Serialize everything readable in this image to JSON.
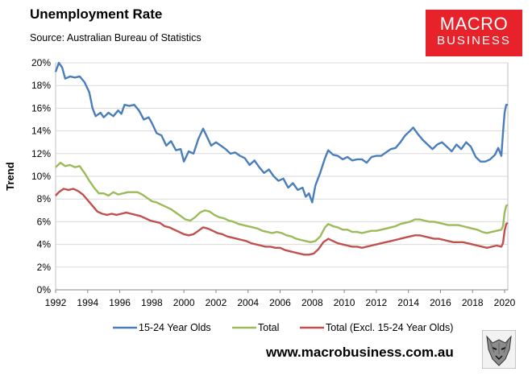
{
  "brand": {
    "line1": "MACRO",
    "line2": "BUSINESS",
    "color": "#e8222a"
  },
  "website": "www.macrobusiness.com.au",
  "chart_data": {
    "type": "line",
    "title": "Unemployment Rate",
    "subtitle": "Source: Australian Bureau of Statistics",
    "ylabel": "Trend",
    "xlabel": "",
    "xlim": [
      1992,
      2020.2
    ],
    "ylim": [
      0,
      20
    ],
    "x_ticks": [
      1992,
      1994,
      1996,
      1998,
      2000,
      2002,
      2004,
      2006,
      2008,
      2010,
      2012,
      2014,
      2016,
      2018,
      2020
    ],
    "x_tick_labels": [
      "1992",
      "1994",
      "1996",
      "1998",
      "2000",
      "2002",
      "2004",
      "2006",
      "2008",
      "2010",
      "2012",
      "2014",
      "2016",
      "2018",
      "2020"
    ],
    "y_ticks": [
      0,
      2,
      4,
      6,
      8,
      10,
      12,
      14,
      16,
      18,
      20
    ],
    "y_tick_labels": [
      "0%",
      "2%",
      "4%",
      "6%",
      "8%",
      "10%",
      "12%",
      "14%",
      "16%",
      "18%",
      "20%"
    ],
    "grid": "horizontal",
    "legend_position": "bottom",
    "series": [
      {
        "name": "15-24 Year Olds",
        "color": "#4a7ebb",
        "points": [
          [
            1992.0,
            19.2
          ],
          [
            1992.2,
            20.0
          ],
          [
            1992.4,
            19.6
          ],
          [
            1992.6,
            18.6
          ],
          [
            1992.9,
            18.8
          ],
          [
            1993.2,
            18.7
          ],
          [
            1993.5,
            18.8
          ],
          [
            1993.8,
            18.3
          ],
          [
            1994.1,
            17.4
          ],
          [
            1994.3,
            16.0
          ],
          [
            1994.5,
            15.3
          ],
          [
            1994.8,
            15.6
          ],
          [
            1995.0,
            15.2
          ],
          [
            1995.3,
            15.6
          ],
          [
            1995.6,
            15.3
          ],
          [
            1995.9,
            15.8
          ],
          [
            1996.1,
            15.5
          ],
          [
            1996.3,
            16.3
          ],
          [
            1996.6,
            16.2
          ],
          [
            1996.9,
            16.3
          ],
          [
            1997.2,
            15.8
          ],
          [
            1997.5,
            15.0
          ],
          [
            1997.8,
            15.2
          ],
          [
            1998.0,
            14.7
          ],
          [
            1998.3,
            13.8
          ],
          [
            1998.6,
            13.6
          ],
          [
            1998.9,
            12.7
          ],
          [
            1999.2,
            13.1
          ],
          [
            1999.5,
            12.3
          ],
          [
            1999.8,
            12.4
          ],
          [
            2000.0,
            11.3
          ],
          [
            2000.3,
            12.2
          ],
          [
            2000.6,
            12.0
          ],
          [
            2000.9,
            13.3
          ],
          [
            2001.2,
            14.2
          ],
          [
            2001.4,
            13.6
          ],
          [
            2001.7,
            12.7
          ],
          [
            2002.0,
            13.0
          ],
          [
            2002.3,
            12.7
          ],
          [
            2002.6,
            12.4
          ],
          [
            2002.9,
            12.0
          ],
          [
            2003.2,
            12.1
          ],
          [
            2003.5,
            11.8
          ],
          [
            2003.8,
            11.6
          ],
          [
            2004.1,
            11.0
          ],
          [
            2004.4,
            11.4
          ],
          [
            2004.7,
            10.8
          ],
          [
            2005.0,
            10.3
          ],
          [
            2005.3,
            10.6
          ],
          [
            2005.6,
            10.0
          ],
          [
            2005.9,
            9.6
          ],
          [
            2006.2,
            9.8
          ],
          [
            2006.5,
            9.0
          ],
          [
            2006.8,
            9.4
          ],
          [
            2007.1,
            8.8
          ],
          [
            2007.4,
            9.0
          ],
          [
            2007.6,
            8.2
          ],
          [
            2007.8,
            8.5
          ],
          [
            2008.0,
            7.7
          ],
          [
            2008.2,
            9.2
          ],
          [
            2008.5,
            10.3
          ],
          [
            2008.8,
            11.6
          ],
          [
            2009.0,
            12.3
          ],
          [
            2009.3,
            11.9
          ],
          [
            2009.6,
            11.8
          ],
          [
            2009.9,
            11.5
          ],
          [
            2010.2,
            11.7
          ],
          [
            2010.5,
            11.4
          ],
          [
            2010.8,
            11.5
          ],
          [
            2011.1,
            11.5
          ],
          [
            2011.4,
            11.2
          ],
          [
            2011.7,
            11.7
          ],
          [
            2012.0,
            11.8
          ],
          [
            2012.3,
            11.8
          ],
          [
            2012.6,
            12.1
          ],
          [
            2012.9,
            12.4
          ],
          [
            2013.2,
            12.5
          ],
          [
            2013.5,
            13.0
          ],
          [
            2013.8,
            13.6
          ],
          [
            2014.1,
            14.0
          ],
          [
            2014.3,
            14.3
          ],
          [
            2014.6,
            13.7
          ],
          [
            2014.9,
            13.2
          ],
          [
            2015.2,
            12.8
          ],
          [
            2015.5,
            12.4
          ],
          [
            2015.8,
            12.8
          ],
          [
            2016.1,
            13.0
          ],
          [
            2016.4,
            12.6
          ],
          [
            2016.7,
            12.2
          ],
          [
            2017.0,
            12.8
          ],
          [
            2017.3,
            12.4
          ],
          [
            2017.6,
            13.0
          ],
          [
            2017.9,
            12.6
          ],
          [
            2018.2,
            11.7
          ],
          [
            2018.5,
            11.3
          ],
          [
            2018.8,
            11.3
          ],
          [
            2019.1,
            11.5
          ],
          [
            2019.4,
            11.9
          ],
          [
            2019.6,
            12.5
          ],
          [
            2019.8,
            11.8
          ],
          [
            2019.9,
            13.8
          ],
          [
            2020.0,
            15.6
          ],
          [
            2020.1,
            16.3
          ],
          [
            2020.2,
            16.3
          ]
        ]
      },
      {
        "name": "Total",
        "color": "#9bbb59",
        "points": [
          [
            1992.0,
            10.8
          ],
          [
            1992.3,
            11.2
          ],
          [
            1992.6,
            10.9
          ],
          [
            1992.9,
            11.0
          ],
          [
            1993.2,
            10.8
          ],
          [
            1993.5,
            10.9
          ],
          [
            1993.8,
            10.3
          ],
          [
            1994.1,
            9.6
          ],
          [
            1994.4,
            9.0
          ],
          [
            1994.7,
            8.5
          ],
          [
            1995.0,
            8.5
          ],
          [
            1995.3,
            8.3
          ],
          [
            1995.6,
            8.6
          ],
          [
            1995.9,
            8.4
          ],
          [
            1996.2,
            8.5
          ],
          [
            1996.5,
            8.6
          ],
          [
            1996.8,
            8.6
          ],
          [
            1997.1,
            8.6
          ],
          [
            1997.4,
            8.4
          ],
          [
            1997.7,
            8.1
          ],
          [
            1998.0,
            7.8
          ],
          [
            1998.3,
            7.7
          ],
          [
            1998.6,
            7.5
          ],
          [
            1998.9,
            7.3
          ],
          [
            1999.2,
            7.1
          ],
          [
            1999.5,
            6.8
          ],
          [
            1999.8,
            6.5
          ],
          [
            2000.1,
            6.2
          ],
          [
            2000.4,
            6.1
          ],
          [
            2000.7,
            6.4
          ],
          [
            2001.0,
            6.8
          ],
          [
            2001.3,
            7.0
          ],
          [
            2001.6,
            6.9
          ],
          [
            2001.9,
            6.6
          ],
          [
            2002.2,
            6.4
          ],
          [
            2002.5,
            6.3
          ],
          [
            2002.8,
            6.1
          ],
          [
            2003.1,
            6.0
          ],
          [
            2003.4,
            5.8
          ],
          [
            2003.7,
            5.7
          ],
          [
            2004.0,
            5.6
          ],
          [
            2004.3,
            5.5
          ],
          [
            2004.6,
            5.4
          ],
          [
            2004.9,
            5.2
          ],
          [
            2005.2,
            5.1
          ],
          [
            2005.5,
            5.0
          ],
          [
            2005.8,
            5.1
          ],
          [
            2006.1,
            5.0
          ],
          [
            2006.4,
            4.8
          ],
          [
            2006.7,
            4.7
          ],
          [
            2007.0,
            4.5
          ],
          [
            2007.3,
            4.4
          ],
          [
            2007.6,
            4.3
          ],
          [
            2007.9,
            4.2
          ],
          [
            2008.2,
            4.3
          ],
          [
            2008.5,
            4.7
          ],
          [
            2008.8,
            5.5
          ],
          [
            2009.0,
            5.8
          ],
          [
            2009.3,
            5.6
          ],
          [
            2009.6,
            5.5
          ],
          [
            2009.9,
            5.3
          ],
          [
            2010.2,
            5.3
          ],
          [
            2010.5,
            5.1
          ],
          [
            2010.8,
            5.1
          ],
          [
            2011.1,
            5.0
          ],
          [
            2011.4,
            5.1
          ],
          [
            2011.7,
            5.2
          ],
          [
            2012.0,
            5.2
          ],
          [
            2012.3,
            5.3
          ],
          [
            2012.6,
            5.4
          ],
          [
            2012.9,
            5.5
          ],
          [
            2013.2,
            5.6
          ],
          [
            2013.5,
            5.8
          ],
          [
            2013.8,
            5.9
          ],
          [
            2014.1,
            6.0
          ],
          [
            2014.4,
            6.2
          ],
          [
            2014.7,
            6.2
          ],
          [
            2015.0,
            6.1
          ],
          [
            2015.3,
            6.0
          ],
          [
            2015.6,
            6.0
          ],
          [
            2015.9,
            5.9
          ],
          [
            2016.2,
            5.8
          ],
          [
            2016.5,
            5.7
          ],
          [
            2016.8,
            5.7
          ],
          [
            2017.1,
            5.7
          ],
          [
            2017.4,
            5.6
          ],
          [
            2017.7,
            5.5
          ],
          [
            2018.0,
            5.4
          ],
          [
            2018.3,
            5.3
          ],
          [
            2018.6,
            5.1
          ],
          [
            2018.9,
            5.0
          ],
          [
            2019.2,
            5.1
          ],
          [
            2019.5,
            5.2
          ],
          [
            2019.8,
            5.3
          ],
          [
            2019.9,
            5.6
          ],
          [
            2020.0,
            6.8
          ],
          [
            2020.1,
            7.4
          ],
          [
            2020.2,
            7.5
          ]
        ]
      },
      {
        "name": "Total (Excl. 15-24 Year Olds)",
        "color": "#c0504d",
        "points": [
          [
            1992.0,
            8.3
          ],
          [
            1992.2,
            8.6
          ],
          [
            1992.5,
            8.9
          ],
          [
            1992.8,
            8.8
          ],
          [
            1993.1,
            8.9
          ],
          [
            1993.4,
            8.7
          ],
          [
            1993.7,
            8.4
          ],
          [
            1994.0,
            7.9
          ],
          [
            1994.3,
            7.4
          ],
          [
            1994.6,
            6.9
          ],
          [
            1994.9,
            6.7
          ],
          [
            1995.2,
            6.6
          ],
          [
            1995.5,
            6.7
          ],
          [
            1995.8,
            6.6
          ],
          [
            1996.1,
            6.7
          ],
          [
            1996.4,
            6.8
          ],
          [
            1996.7,
            6.7
          ],
          [
            1997.0,
            6.6
          ],
          [
            1997.3,
            6.5
          ],
          [
            1997.6,
            6.3
          ],
          [
            1997.9,
            6.1
          ],
          [
            1998.2,
            6.0
          ],
          [
            1998.5,
            5.9
          ],
          [
            1998.8,
            5.6
          ],
          [
            1999.1,
            5.5
          ],
          [
            1999.4,
            5.3
          ],
          [
            1999.7,
            5.1
          ],
          [
            2000.0,
            4.9
          ],
          [
            2000.3,
            4.8
          ],
          [
            2000.6,
            4.9
          ],
          [
            2000.9,
            5.2
          ],
          [
            2001.2,
            5.5
          ],
          [
            2001.5,
            5.4
          ],
          [
            2001.8,
            5.2
          ],
          [
            2002.1,
            5.0
          ],
          [
            2002.4,
            4.9
          ],
          [
            2002.7,
            4.7
          ],
          [
            2003.0,
            4.6
          ],
          [
            2003.3,
            4.5
          ],
          [
            2003.6,
            4.4
          ],
          [
            2003.9,
            4.3
          ],
          [
            2004.2,
            4.1
          ],
          [
            2004.5,
            4.0
          ],
          [
            2004.8,
            3.9
          ],
          [
            2005.1,
            3.8
          ],
          [
            2005.4,
            3.8
          ],
          [
            2005.7,
            3.7
          ],
          [
            2006.0,
            3.7
          ],
          [
            2006.3,
            3.5
          ],
          [
            2006.6,
            3.4
          ],
          [
            2006.9,
            3.3
          ],
          [
            2007.2,
            3.2
          ],
          [
            2007.5,
            3.1
          ],
          [
            2007.8,
            3.1
          ],
          [
            2008.1,
            3.2
          ],
          [
            2008.4,
            3.6
          ],
          [
            2008.7,
            4.2
          ],
          [
            2009.0,
            4.5
          ],
          [
            2009.3,
            4.3
          ],
          [
            2009.6,
            4.1
          ],
          [
            2009.9,
            4.0
          ],
          [
            2010.2,
            3.9
          ],
          [
            2010.5,
            3.8
          ],
          [
            2010.8,
            3.8
          ],
          [
            2011.1,
            3.7
          ],
          [
            2011.4,
            3.8
          ],
          [
            2011.7,
            3.9
          ],
          [
            2012.0,
            4.0
          ],
          [
            2012.3,
            4.1
          ],
          [
            2012.6,
            4.2
          ],
          [
            2012.9,
            4.3
          ],
          [
            2013.2,
            4.4
          ],
          [
            2013.5,
            4.5
          ],
          [
            2013.8,
            4.6
          ],
          [
            2014.1,
            4.7
          ],
          [
            2014.4,
            4.8
          ],
          [
            2014.7,
            4.8
          ],
          [
            2015.0,
            4.7
          ],
          [
            2015.3,
            4.6
          ],
          [
            2015.6,
            4.5
          ],
          [
            2015.9,
            4.5
          ],
          [
            2016.2,
            4.4
          ],
          [
            2016.5,
            4.3
          ],
          [
            2016.8,
            4.2
          ],
          [
            2017.1,
            4.2
          ],
          [
            2017.4,
            4.2
          ],
          [
            2017.7,
            4.1
          ],
          [
            2018.0,
            4.0
          ],
          [
            2018.3,
            3.9
          ],
          [
            2018.6,
            3.8
          ],
          [
            2018.9,
            3.7
          ],
          [
            2019.2,
            3.8
          ],
          [
            2019.5,
            3.9
          ],
          [
            2019.8,
            3.8
          ],
          [
            2019.9,
            4.1
          ],
          [
            2020.0,
            5.2
          ],
          [
            2020.1,
            5.8
          ],
          [
            2020.2,
            5.9
          ]
        ]
      }
    ]
  }
}
